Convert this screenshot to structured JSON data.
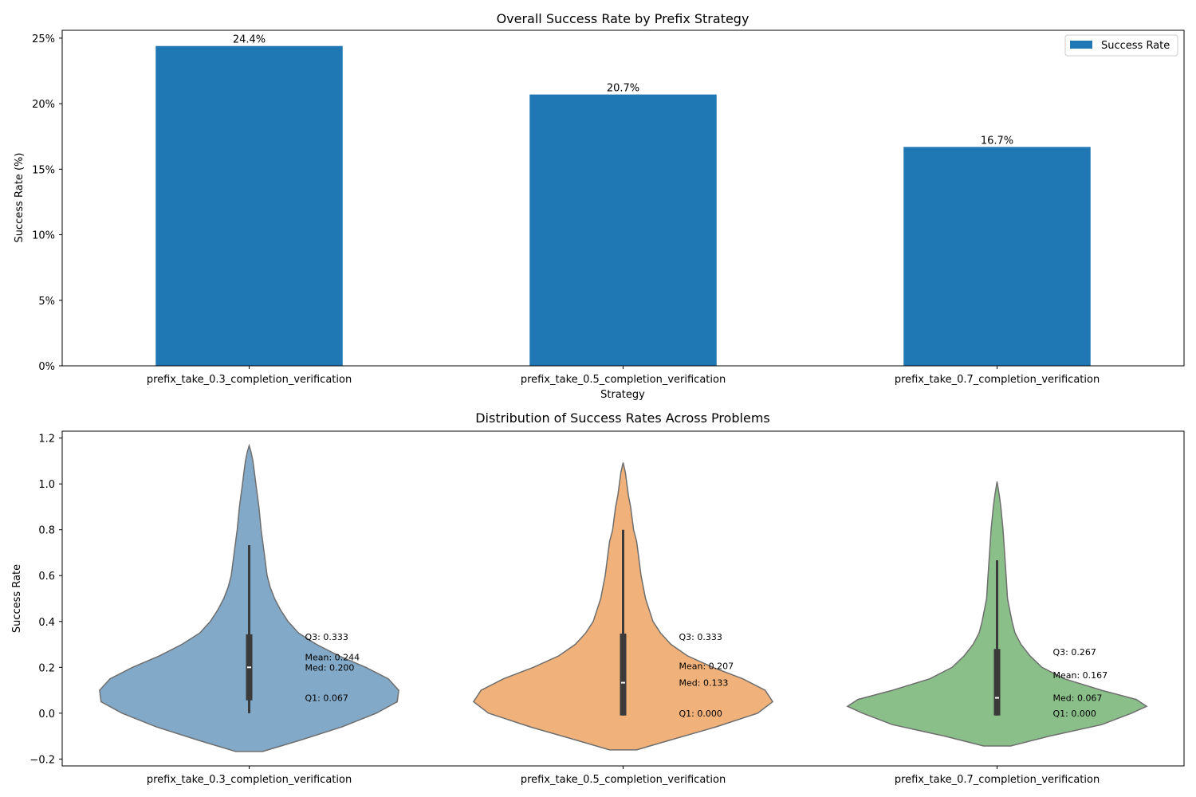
{
  "chart_data": [
    {
      "type": "bar",
      "title": "Overall Success Rate by Prefix Strategy",
      "xlabel": "Strategy",
      "ylabel": "Success Rate (%)",
      "categories": [
        "prefix_take_0.3_completion_verification",
        "prefix_take_0.5_completion_verification",
        "prefix_take_0.7_completion_verification"
      ],
      "series": [
        {
          "name": "Success Rate",
          "values": [
            24.4,
            20.7,
            16.7
          ],
          "color": "#1f77b4"
        }
      ],
      "data_labels": [
        "24.4%",
        "20.7%",
        "16.7%"
      ],
      "ylim": [
        0,
        25.6
      ],
      "yticks": [
        0,
        5,
        10,
        15,
        20,
        25
      ],
      "ytick_labels": [
        "0%",
        "5%",
        "10%",
        "15%",
        "20%",
        "25%"
      ],
      "legend": "top-right",
      "grid": false
    },
    {
      "type": "violin",
      "title": "Distribution of Success Rates Across Problems",
      "xlabel": "",
      "ylabel": "Success Rate",
      "categories": [
        "prefix_take_0.3_completion_verification",
        "prefix_take_0.5_completion_verification",
        "prefix_take_0.7_completion_verification"
      ],
      "colors": [
        "#82a9c8",
        "#f0b27a",
        "#8bbf8a"
      ],
      "ylim": [
        -0.23,
        1.23
      ],
      "yticks": [
        -0.2,
        0.0,
        0.2,
        0.4,
        0.6,
        0.8,
        1.0,
        1.2
      ],
      "ytick_labels": [
        "−0.2",
        "0.0",
        "0.2",
        "0.4",
        "0.6",
        "0.8",
        "1.0",
        "1.2"
      ],
      "grid": false,
      "violins": [
        {
          "min": -0.167,
          "max": 1.167,
          "profile": [
            [
              -0.167,
              0.09
            ],
            [
              -0.12,
              0.33
            ],
            [
              -0.06,
              0.62
            ],
            [
              0.0,
              0.85
            ],
            [
              0.05,
              0.99
            ],
            [
              0.1,
              1.0
            ],
            [
              0.15,
              0.93
            ],
            [
              0.2,
              0.78
            ],
            [
              0.25,
              0.6
            ],
            [
              0.3,
              0.45
            ],
            [
              0.35,
              0.33
            ],
            [
              0.4,
              0.26
            ],
            [
              0.45,
              0.21
            ],
            [
              0.5,
              0.17
            ],
            [
              0.55,
              0.14
            ],
            [
              0.6,
              0.12
            ],
            [
              0.7,
              0.1
            ],
            [
              0.8,
              0.08
            ],
            [
              0.9,
              0.065
            ],
            [
              1.0,
              0.045
            ],
            [
              1.05,
              0.035
            ],
            [
              1.1,
              0.025
            ],
            [
              1.14,
              0.012
            ],
            [
              1.167,
              0.0
            ]
          ],
          "half_width_scale": 0.4,
          "box_q1": 0.056,
          "box_q3": 0.344,
          "whisker_low": 0.0,
          "whisker_high": 0.733,
          "median": 0.2,
          "annotations": [
            {
              "value": 0.333,
              "text": "Q3: 0.333"
            },
            {
              "value": 0.244,
              "text": "Mean: 0.244"
            },
            {
              "value": 0.2,
              "text": "Med: 0.200"
            },
            {
              "value": 0.067,
              "text": "Q1: 0.067"
            }
          ]
        },
        {
          "min": -0.16,
          "max": 1.093,
          "profile": [
            [
              -0.16,
              0.09
            ],
            [
              -0.12,
              0.3
            ],
            [
              -0.06,
              0.62
            ],
            [
              0.0,
              0.9
            ],
            [
              0.05,
              1.0
            ],
            [
              0.1,
              0.95
            ],
            [
              0.15,
              0.8
            ],
            [
              0.2,
              0.6
            ],
            [
              0.25,
              0.43
            ],
            [
              0.3,
              0.32
            ],
            [
              0.35,
              0.25
            ],
            [
              0.4,
              0.2
            ],
            [
              0.5,
              0.15
            ],
            [
              0.6,
              0.12
            ],
            [
              0.7,
              0.1
            ],
            [
              0.75,
              0.09
            ],
            [
              0.8,
              0.07
            ],
            [
              0.85,
              0.06
            ],
            [
              0.9,
              0.05
            ],
            [
              0.95,
              0.035
            ],
            [
              1.0,
              0.025
            ],
            [
              1.05,
              0.015
            ],
            [
              1.093,
              0.0
            ]
          ],
          "half_width_scale": 0.4,
          "box_q1": -0.01,
          "box_q3": 0.347,
          "whisker_low": -0.01,
          "whisker_high": 0.8,
          "median": 0.133,
          "annotations": [
            {
              "value": 0.333,
              "text": "Q3: 0.333"
            },
            {
              "value": 0.207,
              "text": "Mean: 0.207"
            },
            {
              "value": 0.133,
              "text": "Med: 0.133"
            },
            {
              "value": 0.0,
              "text": "Q1: 0.000"
            }
          ]
        },
        {
          "min": -0.143,
          "max": 1.01,
          "profile": [
            [
              -0.143,
              0.09
            ],
            [
              -0.1,
              0.35
            ],
            [
              -0.05,
              0.7
            ],
            [
              0.0,
              0.9
            ],
            [
              0.03,
              1.0
            ],
            [
              0.06,
              0.93
            ],
            [
              0.1,
              0.7
            ],
            [
              0.15,
              0.45
            ],
            [
              0.2,
              0.3
            ],
            [
              0.25,
              0.22
            ],
            [
              0.3,
              0.16
            ],
            [
              0.35,
              0.12
            ],
            [
              0.4,
              0.1
            ],
            [
              0.45,
              0.085
            ],
            [
              0.5,
              0.07
            ],
            [
              0.6,
              0.06
            ],
            [
              0.7,
              0.05
            ],
            [
              0.8,
              0.04
            ],
            [
              0.9,
              0.025
            ],
            [
              0.95,
              0.015
            ],
            [
              1.01,
              0.0
            ]
          ],
          "half_width_scale": 0.4,
          "box_q1": -0.01,
          "box_q3": 0.28,
          "whisker_low": -0.01,
          "whisker_high": 0.667,
          "median": 0.067,
          "annotations": [
            {
              "value": 0.267,
              "text": "Q3: 0.267"
            },
            {
              "value": 0.167,
              "text": "Mean: 0.167"
            },
            {
              "value": 0.067,
              "text": "Med: 0.067"
            },
            {
              "value": 0.0,
              "text": "Q1: 0.000"
            }
          ]
        }
      ]
    }
  ]
}
